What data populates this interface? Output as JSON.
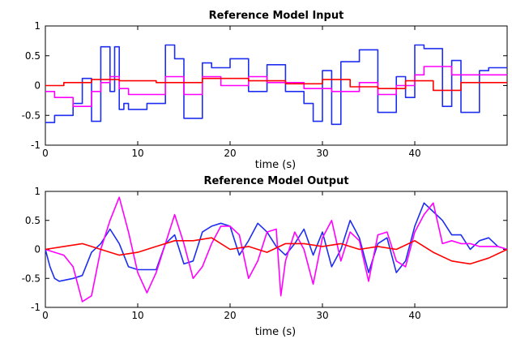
{
  "chart_data": [
    {
      "type": "line",
      "title": "Reference Model Input",
      "xlabel": "time (s)",
      "ylabel": "",
      "xlim": [
        0,
        50
      ],
      "ylim": [
        -1,
        1
      ],
      "xticks": [
        0,
        10,
        20,
        30,
        40
      ],
      "yticks": [
        -1,
        -0.5,
        0,
        0.5,
        1
      ],
      "xtick_labels": [
        "0",
        "10",
        "20",
        "30",
        "40"
      ],
      "ytick_labels": [
        "-1",
        "-0.5",
        "0",
        "0.5",
        "1"
      ],
      "grid": false,
      "series": [
        {
          "color": "#1e2ef0",
          "x": [
            0,
            1,
            1,
            3,
            3,
            4,
            4,
            5,
            5,
            6,
            6,
            7,
            7,
            7.5,
            7.5,
            8,
            8,
            8.5,
            8.5,
            9,
            9,
            11,
            11,
            13,
            13,
            14,
            14,
            15,
            15,
            17,
            17,
            18,
            18,
            20,
            20,
            22,
            22,
            24,
            24,
            26,
            26,
            28,
            28,
            29,
            29,
            30,
            30,
            31,
            31,
            32,
            32,
            34,
            34,
            36,
            36,
            38,
            38,
            39,
            39,
            40,
            40,
            41,
            41,
            43,
            43,
            44,
            44,
            45,
            45,
            47,
            47,
            48,
            48,
            50
          ],
          "y": [
            -0.62,
            -0.62,
            -0.5,
            -0.5,
            -0.3,
            -0.3,
            0.12,
            0.12,
            -0.6,
            -0.6,
            0.65,
            0.65,
            -0.1,
            -0.1,
            0.65,
            0.65,
            -0.4,
            -0.4,
            -0.3,
            -0.3,
            -0.4,
            -0.4,
            -0.3,
            -0.3,
            0.68,
            0.68,
            0.45,
            0.45,
            -0.55,
            -0.55,
            0.38,
            0.38,
            0.3,
            0.3,
            0.45,
            0.45,
            -0.1,
            -0.1,
            0.35,
            0.35,
            -0.1,
            -0.1,
            -0.3,
            -0.3,
            -0.6,
            -0.6,
            0.25,
            0.25,
            -0.65,
            -0.65,
            0.4,
            0.4,
            0.6,
            0.6,
            -0.45,
            -0.45,
            0.15,
            0.15,
            -0.2,
            -0.2,
            0.68,
            0.68,
            0.62,
            0.62,
            -0.35,
            -0.35,
            0.42,
            0.42,
            -0.45,
            -0.45,
            0.25,
            0.25,
            0.3,
            0.3
          ]
        },
        {
          "color": "#ff00ff",
          "x": [
            0,
            1,
            1,
            3,
            3,
            5,
            5,
            6,
            6,
            7,
            7,
            8,
            8,
            9,
            9,
            13,
            13,
            15,
            15,
            17,
            17,
            19,
            19,
            22,
            22,
            24,
            24,
            28,
            28,
            31,
            31,
            34,
            34,
            36,
            36,
            38,
            38,
            40,
            40,
            41,
            41,
            44,
            44,
            50
          ],
          "y": [
            -0.1,
            -0.1,
            -0.2,
            -0.2,
            -0.35,
            -0.35,
            -0.1,
            -0.1,
            0.05,
            0.05,
            0.15,
            0.15,
            -0.05,
            -0.05,
            -0.15,
            -0.15,
            0.15,
            0.15,
            -0.15,
            -0.15,
            0.15,
            0.15,
            0.0,
            0.0,
            0.15,
            0.15,
            0.05,
            0.05,
            -0.05,
            -0.05,
            -0.1,
            -0.1,
            0.05,
            0.05,
            -0.15,
            -0.15,
            0.0,
            0.0,
            0.18,
            0.18,
            0.32,
            0.32,
            0.18,
            0.18
          ]
        },
        {
          "color": "#ff0000",
          "x": [
            0,
            2,
            2,
            5,
            5,
            8,
            8,
            12,
            12,
            17,
            17,
            22,
            22,
            26,
            26,
            30,
            30,
            33,
            33,
            36,
            36,
            39,
            39,
            42,
            42,
            45,
            45,
            50
          ],
          "y": [
            0.0,
            0.0,
            0.05,
            0.05,
            0.1,
            0.1,
            0.08,
            0.08,
            0.05,
            0.05,
            0.12,
            0.12,
            0.08,
            0.08,
            0.03,
            0.03,
            0.1,
            0.1,
            -0.02,
            -0.02,
            -0.05,
            -0.05,
            0.08,
            0.08,
            -0.08,
            -0.08,
            0.05,
            0.05
          ]
        }
      ]
    },
    {
      "type": "line",
      "title": "Reference Model Output",
      "xlabel": "time (s)",
      "ylabel": "",
      "xlim": [
        0,
        50
      ],
      "ylim": [
        -1,
        1
      ],
      "xticks": [
        0,
        10,
        20,
        30,
        40
      ],
      "yticks": [
        -1,
        -0.5,
        0,
        0.5,
        1
      ],
      "xtick_labels": [
        "0",
        "10",
        "20",
        "30",
        "40"
      ],
      "ytick_labels": [
        "-1",
        "-0.5",
        "0",
        "0.5",
        "1"
      ],
      "grid": false,
      "series": [
        {
          "color": "#1e2ef0",
          "x": [
            0,
            0.5,
            1,
            1.5,
            3,
            4,
            5,
            6,
            7,
            8,
            9,
            10,
            11,
            12,
            13,
            14,
            15,
            16,
            17,
            18,
            19,
            20,
            21,
            22,
            23,
            24,
            25,
            26,
            27,
            28,
            29,
            30,
            31,
            32,
            33,
            34,
            35,
            36,
            37,
            38,
            39,
            40,
            41,
            42,
            43,
            44,
            45,
            46,
            47,
            48,
            49,
            50
          ],
          "y": [
            0.0,
            -0.3,
            -0.5,
            -0.55,
            -0.5,
            -0.45,
            -0.05,
            0.1,
            0.35,
            0.1,
            -0.3,
            -0.35,
            -0.35,
            -0.35,
            0.1,
            0.25,
            -0.25,
            -0.2,
            0.3,
            0.4,
            0.45,
            0.4,
            -0.1,
            0.15,
            0.45,
            0.3,
            0.05,
            -0.1,
            0.1,
            0.35,
            -0.1,
            0.3,
            -0.3,
            0.0,
            0.5,
            0.2,
            -0.4,
            0.1,
            0.2,
            -0.4,
            -0.2,
            0.4,
            0.8,
            0.65,
            0.5,
            0.25,
            0.25,
            0.0,
            0.15,
            0.2,
            0.05,
            0.0
          ]
        },
        {
          "color": "#ff00ff",
          "x": [
            0,
            1,
            2,
            3,
            4,
            5,
            6,
            7,
            8,
            9,
            10,
            11,
            12,
            13,
            14,
            15,
            16,
            17,
            18,
            19,
            20,
            21,
            22,
            23,
            24,
            25,
            25.5,
            26,
            27,
            28,
            29,
            30,
            31,
            32,
            33,
            34,
            35,
            36,
            37,
            38,
            39,
            40,
            41,
            42,
            43,
            44,
            45,
            46,
            47,
            48,
            49,
            50
          ],
          "y": [
            0.0,
            -0.05,
            -0.1,
            -0.3,
            -0.9,
            -0.8,
            0.0,
            0.5,
            0.9,
            0.3,
            -0.4,
            -0.75,
            -0.4,
            0.1,
            0.6,
            0.1,
            -0.5,
            -0.3,
            0.1,
            0.4,
            0.4,
            0.25,
            -0.5,
            -0.2,
            0.3,
            0.35,
            -0.8,
            -0.2,
            0.3,
            0.0,
            -0.6,
            0.2,
            0.5,
            -0.2,
            0.3,
            0.15,
            -0.55,
            0.25,
            0.3,
            -0.2,
            -0.3,
            0.3,
            0.6,
            0.8,
            0.1,
            0.15,
            0.1,
            0.1,
            0.05,
            0.05,
            0.05,
            0.0
          ]
        },
        {
          "color": "#ff0000",
          "x": [
            0,
            2,
            4,
            6,
            8,
            10,
            12,
            14,
            16,
            18,
            20,
            22,
            24,
            26,
            28,
            30,
            32,
            34,
            36,
            38,
            40,
            42,
            44,
            46,
            48,
            50
          ],
          "y": [
            0.0,
            0.05,
            0.1,
            0.0,
            -0.1,
            -0.05,
            0.05,
            0.15,
            0.15,
            0.2,
            0.0,
            0.05,
            -0.05,
            0.1,
            0.1,
            0.05,
            0.1,
            0.0,
            0.05,
            0.0,
            0.15,
            -0.05,
            -0.2,
            -0.25,
            -0.15,
            0.0
          ]
        }
      ]
    }
  ]
}
